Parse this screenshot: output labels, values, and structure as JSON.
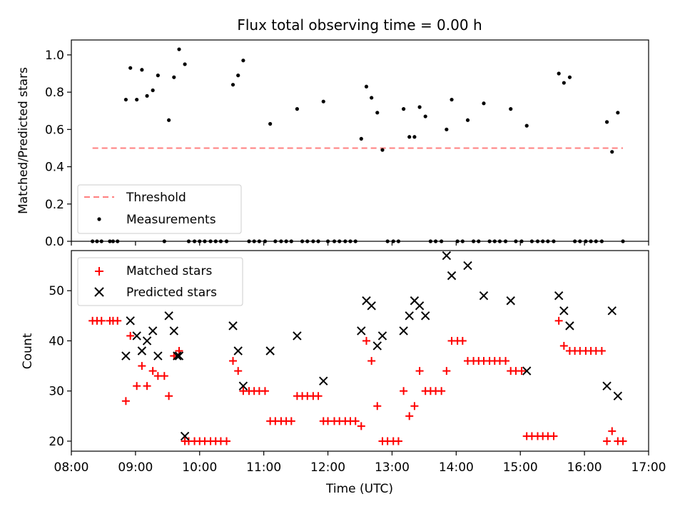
{
  "chart_data": [
    {
      "type": "scatter",
      "title": "Flux total observing time = 0.00 h",
      "xlabel": "",
      "ylabel": "Matched/Predicted stars",
      "xlim": [
        8.0,
        17.0
      ],
      "ylim": [
        0.0,
        1.08
      ],
      "yticks": [
        0.0,
        0.2,
        0.4,
        0.6,
        0.8,
        1.0
      ],
      "ytick_labels": [
        "0.0",
        "0.2",
        "0.4",
        "0.6",
        "0.8",
        "1.0"
      ],
      "legend_position": "lower-left",
      "series": [
        {
          "name": "Threshold",
          "kind": "dashed-line",
          "color": "#ff7f7f",
          "x": [
            8.33,
            16.6
          ],
          "y": [
            0.5,
            0.5
          ]
        },
        {
          "name": "Measurements",
          "kind": "dot",
          "color": "#000000",
          "x": [
            8.33,
            8.4,
            8.47,
            8.6,
            8.65,
            8.72,
            8.85,
            8.92,
            9.02,
            9.1,
            9.18,
            9.27,
            9.35,
            9.45,
            9.52,
            9.6,
            9.68,
            9.77,
            9.83,
            9.92,
            10.0,
            10.08,
            10.17,
            10.25,
            10.33,
            10.42,
            10.52,
            10.6,
            10.68,
            10.77,
            10.85,
            10.93,
            11.02,
            11.1,
            11.18,
            11.27,
            11.35,
            11.43,
            11.52,
            11.6,
            11.68,
            11.77,
            11.85,
            11.93,
            12.0,
            12.1,
            12.18,
            12.27,
            12.35,
            12.43,
            12.52,
            12.6,
            12.68,
            12.77,
            12.85,
            12.93,
            13.02,
            13.1,
            13.18,
            13.27,
            13.35,
            13.43,
            13.52,
            13.6,
            13.68,
            13.77,
            13.85,
            13.93,
            14.02,
            14.1,
            14.18,
            14.27,
            14.35,
            14.43,
            14.52,
            14.6,
            14.68,
            14.77,
            14.85,
            14.93,
            15.02,
            15.1,
            15.18,
            15.27,
            15.35,
            15.43,
            15.52,
            15.6,
            15.68,
            15.77,
            15.85,
            15.93,
            16.02,
            16.1,
            16.18,
            16.27,
            16.35,
            16.43,
            16.52,
            16.6
          ],
          "y": [
            0,
            0,
            0,
            0,
            0,
            0,
            0.76,
            0.93,
            0.76,
            0.92,
            0.78,
            0.81,
            0.89,
            0,
            0.65,
            0.88,
            1.03,
            0.95,
            0,
            0,
            0,
            0,
            0,
            0,
            0,
            0,
            0.84,
            0.89,
            0.97,
            0,
            0,
            0,
            0,
            0.63,
            0,
            0,
            0,
            0,
            0.71,
            0,
            0,
            0,
            0,
            0.75,
            0,
            0,
            0,
            0,
            0,
            0,
            0.55,
            0.83,
            0.77,
            0.69,
            0.49,
            0,
            0,
            0,
            0.71,
            0.56,
            0.56,
            0.72,
            0.67,
            0,
            0,
            0,
            0.6,
            0.76,
            0,
            0,
            0.65,
            0,
            0,
            0.74,
            0,
            0,
            0,
            0,
            0.71,
            0,
            0,
            0.62,
            0,
            0,
            0,
            0,
            0,
            0.9,
            0.85,
            0.88,
            0,
            0,
            0,
            0,
            0,
            0,
            0.64,
            0.48,
            0.69,
            0
          ]
        }
      ]
    },
    {
      "type": "scatter",
      "title": "",
      "xlabel": "Time (UTC)",
      "ylabel": "Count",
      "xlim": [
        8.0,
        17.0
      ],
      "ylim": [
        18,
        58
      ],
      "yticks": [
        20,
        30,
        40,
        50
      ],
      "ytick_labels": [
        "20",
        "30",
        "40",
        "50"
      ],
      "xticks": [
        8,
        9,
        10,
        11,
        12,
        13,
        14,
        15,
        16,
        17
      ],
      "xtick_labels": [
        "08:00",
        "09:00",
        "10:00",
        "11:00",
        "12:00",
        "13:00",
        "14:00",
        "15:00",
        "16:00",
        "17:00"
      ],
      "legend_position": "upper-left",
      "series": [
        {
          "name": "Matched stars",
          "kind": "plus",
          "color": "#ff0000",
          "x": [
            8.33,
            8.4,
            8.47,
            8.6,
            8.65,
            8.72,
            8.85,
            8.92,
            9.02,
            9.1,
            9.18,
            9.27,
            9.35,
            9.45,
            9.52,
            9.6,
            9.68,
            9.77,
            9.83,
            9.92,
            10.0,
            10.08,
            10.17,
            10.25,
            10.33,
            10.42,
            10.52,
            10.6,
            10.68,
            10.77,
            10.85,
            10.93,
            11.02,
            11.1,
            11.18,
            11.27,
            11.35,
            11.43,
            11.52,
            11.6,
            11.68,
            11.77,
            11.85,
            11.93,
            12.0,
            12.1,
            12.18,
            12.27,
            12.35,
            12.43,
            12.52,
            12.6,
            12.68,
            12.77,
            12.85,
            12.93,
            13.02,
            13.1,
            13.18,
            13.27,
            13.35,
            13.43,
            13.52,
            13.6,
            13.68,
            13.77,
            13.85,
            13.93,
            14.02,
            14.1,
            14.18,
            14.27,
            14.35,
            14.43,
            14.52,
            14.6,
            14.68,
            14.77,
            14.85,
            14.93,
            15.02,
            15.1,
            15.18,
            15.27,
            15.35,
            15.43,
            15.52,
            15.6,
            15.68,
            15.77,
            15.85,
            15.93,
            16.02,
            16.1,
            16.18,
            16.27,
            16.35,
            16.43,
            16.52,
            16.6
          ],
          "y": [
            44,
            44,
            44,
            44,
            44,
            44,
            28,
            41,
            31,
            35,
            31,
            34,
            33,
            33,
            29,
            37,
            38,
            20,
            20,
            20,
            20,
            20,
            20,
            20,
            20,
            20,
            36,
            34,
            30,
            30,
            30,
            30,
            30,
            24,
            24,
            24,
            24,
            24,
            29,
            29,
            29,
            29,
            29,
            24,
            24,
            24,
            24,
            24,
            24,
            24,
            23,
            40,
            36,
            27,
            20,
            20,
            20,
            20,
            30,
            25,
            27,
            34,
            30,
            30,
            30,
            30,
            34,
            40,
            40,
            40,
            36,
            36,
            36,
            36,
            36,
            36,
            36,
            36,
            34,
            34,
            34,
            21,
            21,
            21,
            21,
            21,
            21,
            44,
            39,
            38,
            38,
            38,
            38,
            38,
            38,
            38,
            20,
            22,
            20,
            20
          ]
        },
        {
          "name": "Predicted stars",
          "kind": "cross",
          "color": "#000000",
          "x": [
            8.85,
            8.92,
            9.02,
            9.1,
            9.18,
            9.27,
            9.35,
            9.52,
            9.6,
            9.65,
            9.68,
            9.77,
            10.52,
            10.6,
            10.68,
            11.1,
            11.52,
            11.93,
            12.52,
            12.6,
            12.68,
            12.77,
            12.85,
            13.18,
            13.27,
            13.35,
            13.43,
            13.52,
            13.85,
            13.93,
            14.18,
            14.43,
            14.85,
            15.1,
            15.6,
            15.68,
            15.77,
            16.35,
            16.43,
            16.52
          ],
          "y": [
            37,
            44,
            41,
            38,
            40,
            42,
            37,
            45,
            42,
            37,
            37,
            21,
            43,
            38,
            31,
            38,
            41,
            32,
            42,
            48,
            47,
            39,
            41,
            42,
            45,
            48,
            47,
            45,
            57,
            53,
            55,
            49,
            48,
            34,
            49,
            46,
            43,
            31,
            46,
            29
          ]
        }
      ]
    }
  ]
}
